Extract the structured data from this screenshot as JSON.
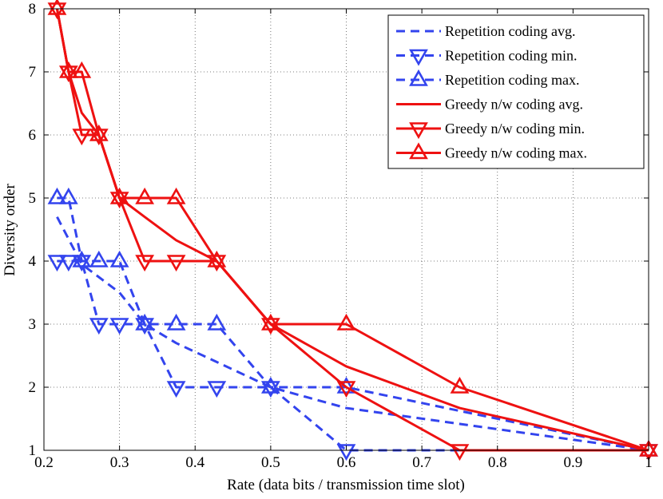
{
  "chart_data": {
    "type": "line",
    "title": "",
    "xlabel": "Rate (data bits / transmission time slot)",
    "ylabel": "Diversity order",
    "xlim": [
      0.2,
      1.0
    ],
    "ylim": [
      1,
      8
    ],
    "xticks": [
      0.2,
      0.3,
      0.4,
      0.5,
      0.6,
      0.7,
      0.8,
      0.9,
      1.0
    ],
    "xtick_labels": [
      "0.2",
      "0.3",
      "0.4",
      "0.5",
      "0.6",
      "0.7",
      "0.8",
      "0.9",
      "1"
    ],
    "yticks": [
      1,
      2,
      3,
      4,
      5,
      6,
      7,
      8
    ],
    "ytick_labels": [
      "1",
      "2",
      "3",
      "4",
      "5",
      "6",
      "7",
      "8"
    ],
    "grid": true,
    "legend_position": "top-right",
    "series": [
      {
        "name": "Repetition coding avg.",
        "color": "#3344ee",
        "dash": "dashed",
        "marker": "none",
        "x": [
          0.2174,
          0.25,
          0.3,
          0.3333,
          0.375,
          0.4286,
          0.5,
          0.6,
          1.0
        ],
        "y": [
          4.7,
          3.95,
          3.5,
          3.0,
          2.7,
          2.4,
          2.0,
          1.67,
          1.0
        ]
      },
      {
        "name": "Repetition coding min.",
        "color": "#3344ee",
        "dash": "dashed",
        "marker": "triangle-down",
        "x": [
          0.2174,
          0.2326,
          0.25,
          0.2727,
          0.3,
          0.3333,
          0.375,
          0.4286,
          0.5,
          0.6,
          1.0
        ],
        "y": [
          4,
          4,
          4,
          3,
          3,
          3,
          2,
          2,
          2,
          1,
          1
        ]
      },
      {
        "name": "Repetition coding max.",
        "color": "#3344ee",
        "dash": "dashed",
        "marker": "triangle-up",
        "x": [
          0.2174,
          0.2326,
          0.25,
          0.2727,
          0.3,
          0.3333,
          0.375,
          0.4286,
          0.5,
          0.6,
          1.0
        ],
        "y": [
          5,
          5,
          4,
          4,
          4,
          3,
          3,
          3,
          2,
          2,
          1
        ]
      },
      {
        "name": "Greedy n/w coding avg.",
        "color": "#ee1111",
        "dash": "solid",
        "marker": "none",
        "x": [
          0.2174,
          0.2326,
          0.25,
          0.2727,
          0.3,
          0.3333,
          0.375,
          0.4286,
          0.5,
          0.6,
          0.75,
          1.0
        ],
        "y": [
          8,
          7,
          6.35,
          6,
          5,
          4.7,
          4.33,
          4,
          3,
          2.33,
          1.67,
          1
        ]
      },
      {
        "name": "Greedy n/w coding min.",
        "color": "#ee1111",
        "dash": "solid",
        "marker": "triangle-down",
        "x": [
          0.2174,
          0.2326,
          0.25,
          0.2727,
          0.3,
          0.3333,
          0.375,
          0.4286,
          0.5,
          0.6,
          0.75,
          1.0
        ],
        "y": [
          8,
          7,
          6,
          6,
          5,
          4,
          4,
          4,
          3,
          2,
          1,
          1
        ]
      },
      {
        "name": "Greedy n/w coding max.",
        "color": "#ee1111",
        "dash": "solid",
        "marker": "triangle-up",
        "x": [
          0.2174,
          0.2326,
          0.25,
          0.2727,
          0.3,
          0.3333,
          0.375,
          0.4286,
          0.5,
          0.6,
          0.75,
          1.0
        ],
        "y": [
          8,
          7,
          7,
          6,
          5,
          5,
          5,
          4,
          3,
          3,
          2,
          1
        ]
      }
    ]
  }
}
